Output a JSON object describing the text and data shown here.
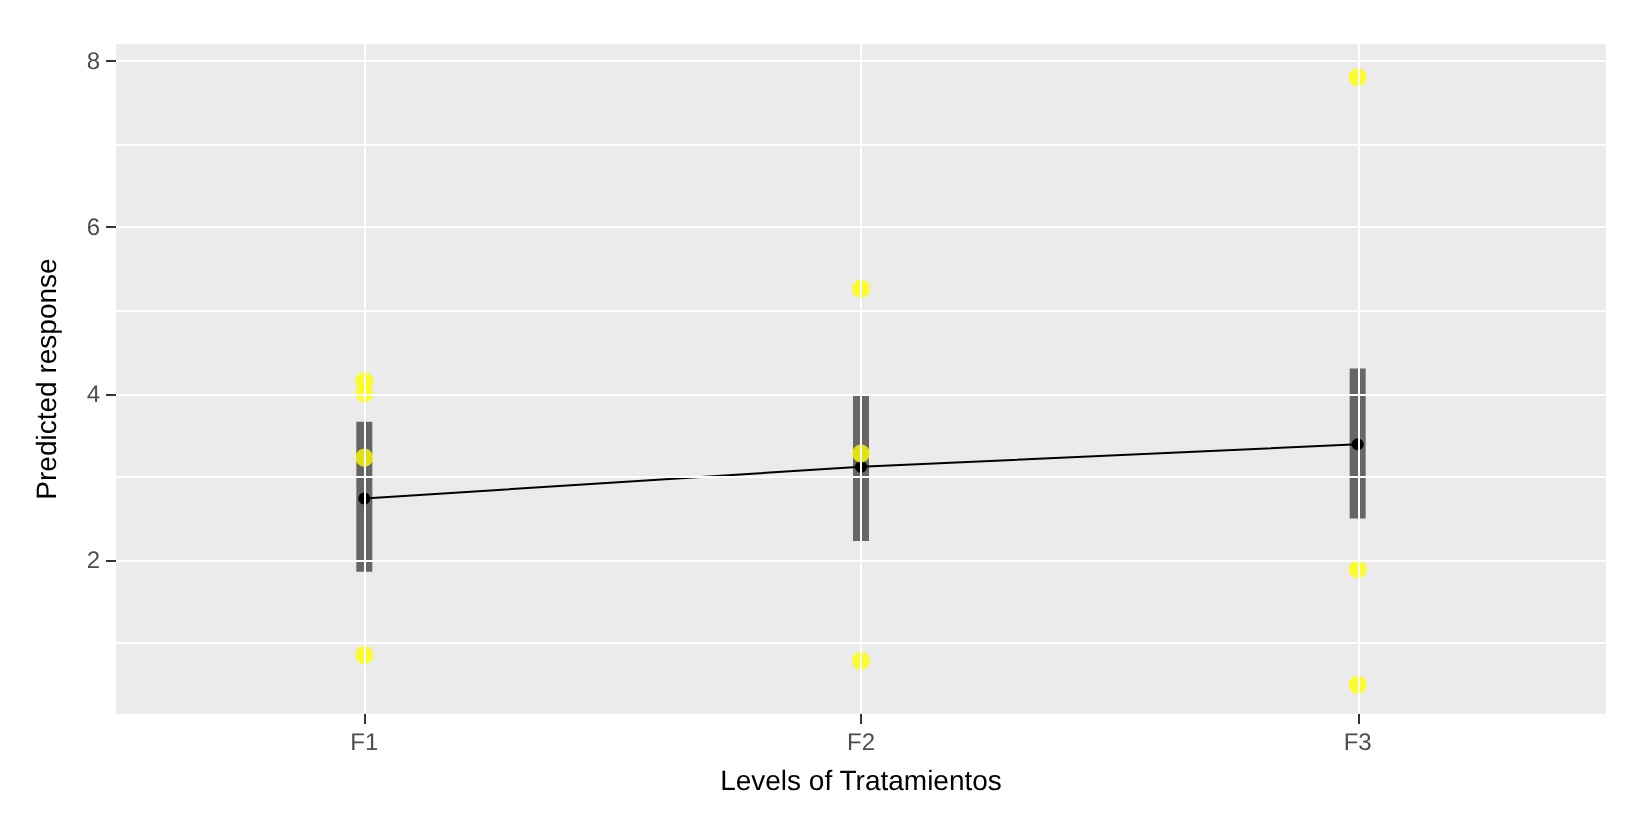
{
  "chart_data": {
    "type": "line",
    "xlabel": "Levels of Tratamientos",
    "ylabel": "Predicted response",
    "categories": [
      "F1",
      "F2",
      "F3"
    ],
    "series": [
      {
        "color": "#000000",
        "values": [
          2.74,
          3.12,
          3.39
        ],
        "errors": [
          [
            1.86,
            3.66
          ],
          [
            2.23,
            3.99
          ],
          [
            2.5,
            4.3
          ]
        ]
      },
      {
        "type": "scatter",
        "color": "#ffff00",
        "x": [
          "F1",
          "F1",
          "F1",
          "F1",
          "F2",
          "F2",
          "F2",
          "F3",
          "F3",
          "F3"
        ],
        "values": [
          4.15,
          4.0,
          3.23,
          0.86,
          5.26,
          3.28,
          0.79,
          7.8,
          1.89,
          0.5
        ]
      }
    ],
    "ylim": [
      0.15,
      8.2
    ],
    "yticks": [
      {
        "value": 1,
        "label": null
      },
      2,
      {
        "value": 3,
        "label": null
      },
      4,
      {
        "value": 5,
        "label": null
      },
      6,
      {
        "value": 7,
        "label": null
      },
      8
    ],
    "grid": true,
    "marker": "circle"
  }
}
